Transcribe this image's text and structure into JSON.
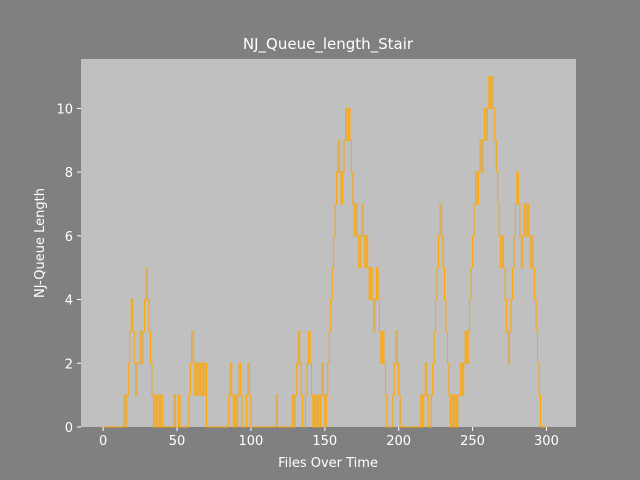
{
  "chart_data": {
    "type": "step",
    "title": "NJ_Queue_length_Stair",
    "x_label": "Files Over Time",
    "y_label": "NJ-Queue Length",
    "series": [
      {
        "color": "#ffa500",
        "x": [
          0,
          14,
          15,
          16,
          17,
          18,
          19,
          20,
          21,
          22,
          23,
          25,
          26,
          27,
          28,
          29,
          30,
          31,
          32,
          33,
          34,
          35,
          36,
          37,
          38,
          39,
          40,
          48,
          49,
          51,
          52,
          58,
          59,
          60,
          61,
          62,
          63,
          64,
          65,
          66,
          67,
          68,
          69,
          70,
          85,
          86,
          87,
          88,
          89,
          90,
          91,
          92,
          93,
          94,
          97,
          98,
          99,
          100,
          117,
          118,
          128,
          129,
          130,
          131,
          132,
          133,
          134,
          135,
          137,
          138,
          139,
          140,
          141,
          142,
          143,
          144,
          145,
          146,
          147,
          148,
          149,
          150,
          151,
          152,
          153,
          154,
          155,
          156,
          157,
          158,
          159,
          160,
          161,
          162,
          163,
          164,
          165,
          166,
          167,
          168,
          169,
          170,
          171,
          172,
          173,
          174,
          175,
          176,
          177,
          178,
          179,
          180,
          181,
          182,
          183,
          184,
          185,
          186,
          187,
          188,
          189,
          190,
          191,
          192,
          196,
          197,
          198,
          199,
          200,
          201,
          215,
          216,
          217,
          218,
          219,
          220,
          222,
          223,
          224,
          225,
          226,
          227,
          228,
          229,
          230,
          231,
          232,
          233,
          234,
          235,
          236,
          237,
          238,
          239,
          240,
          242,
          243,
          244,
          245,
          246,
          247,
          248,
          249,
          250,
          251,
          252,
          253,
          254,
          255,
          256,
          257,
          258,
          259,
          260,
          261,
          262,
          263,
          264,
          265,
          266,
          267,
          268,
          269,
          270,
          271,
          272,
          273,
          274,
          275,
          276,
          277,
          278,
          279,
          280,
          281,
          282,
          283,
          284,
          285,
          286,
          287,
          288,
          289,
          290,
          291,
          292,
          293,
          294,
          295,
          296,
          300
        ],
        "values": [
          0,
          1,
          0,
          1,
          2,
          3,
          4,
          3,
          2,
          1,
          2,
          3,
          2,
          3,
          4,
          5,
          4,
          3,
          2,
          1,
          0,
          1,
          0,
          1,
          0,
          1,
          0,
          1,
          0,
          1,
          0,
          1,
          2,
          3,
          2,
          1,
          2,
          1,
          2,
          1,
          2,
          1,
          2,
          0,
          1,
          2,
          1,
          0,
          1,
          0,
          1,
          2,
          1,
          0,
          1,
          2,
          1,
          0,
          1,
          0,
          1,
          0,
          1,
          2,
          3,
          2,
          1,
          0,
          1,
          2,
          3,
          2,
          1,
          0,
          1,
          0,
          1,
          0,
          1,
          2,
          1,
          0,
          1,
          2,
          3,
          4,
          5,
          6,
          7,
          8,
          9,
          8,
          7,
          8,
          9,
          10,
          9,
          10,
          9,
          8,
          7,
          6,
          7,
          6,
          5,
          6,
          7,
          6,
          5,
          6,
          5,
          4,
          5,
          4,
          3,
          4,
          5,
          4,
          3,
          2,
          3,
          2,
          1,
          0,
          1,
          2,
          3,
          2,
          1,
          0,
          1,
          0,
          1,
          2,
          1,
          0,
          1,
          2,
          3,
          4,
          5,
          6,
          7,
          6,
          5,
          4,
          3,
          2,
          1,
          0,
          1,
          0,
          1,
          0,
          1,
          2,
          1,
          2,
          3,
          2,
          3,
          4,
          5,
          6,
          7,
          8,
          7,
          8,
          9,
          8,
          9,
          10,
          9,
          10,
          11,
          10,
          11,
          10,
          9,
          8,
          7,
          6,
          5,
          6,
          5,
          4,
          3,
          2,
          3,
          4,
          5,
          6,
          7,
          8,
          7,
          6,
          5,
          6,
          7,
          6,
          7,
          6,
          5,
          6,
          5,
          4,
          3,
          2,
          1,
          0,
          0
        ]
      }
    ],
    "xlim": [
      -15,
      320
    ],
    "ylim": [
      0,
      11.55
    ],
    "xticks": [
      0,
      50,
      100,
      150,
      200,
      250,
      300
    ],
    "yticks": [
      0,
      2,
      4,
      6,
      8,
      10
    ]
  }
}
